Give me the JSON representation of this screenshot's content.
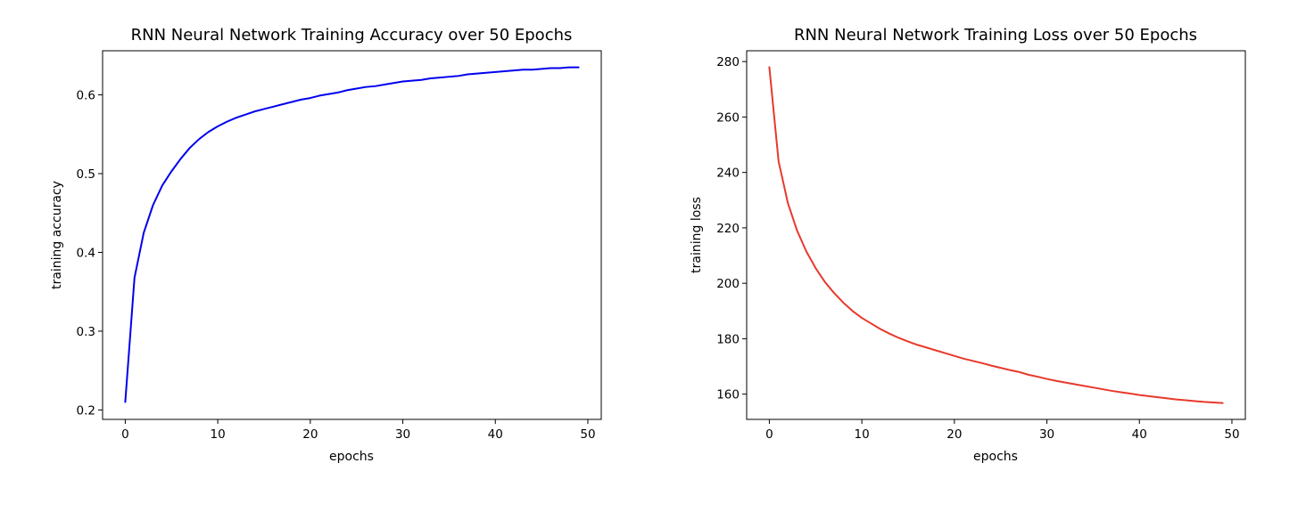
{
  "chart_data": [
    {
      "type": "line",
      "title": "RNN Neural Network Training Accuracy over 50 Epochs",
      "xlabel": "epochs",
      "ylabel": "training accuracy",
      "xlim": [
        -2.45,
        51.45
      ],
      "ylim": [
        0.188,
        0.656
      ],
      "xticks": [
        0,
        10,
        20,
        30,
        40,
        50
      ],
      "xtick_labels": [
        "0",
        "10",
        "20",
        "30",
        "40",
        "50"
      ],
      "yticks": [
        0.2,
        0.3,
        0.4,
        0.5,
        0.6
      ],
      "ytick_labels": [
        "0.2",
        "0.3",
        "0.4",
        "0.5",
        "0.6"
      ],
      "grid": false,
      "legend": "none",
      "series": [
        {
          "color": "#0000ee",
          "x": [
            0,
            1,
            2,
            3,
            4,
            5,
            6,
            7,
            8,
            9,
            10,
            11,
            12,
            13,
            14,
            15,
            16,
            17,
            18,
            19,
            20,
            21,
            22,
            23,
            24,
            25,
            26,
            27,
            28,
            29,
            30,
            31,
            32,
            33,
            34,
            35,
            36,
            37,
            38,
            39,
            40,
            41,
            42,
            43,
            44,
            45,
            46,
            47,
            48,
            49
          ],
          "y": [
            0.21,
            0.368,
            0.425,
            0.46,
            0.485,
            0.503,
            0.519,
            0.533,
            0.544,
            0.553,
            0.56,
            0.566,
            0.571,
            0.575,
            0.579,
            0.582,
            0.585,
            0.588,
            0.591,
            0.594,
            0.596,
            0.599,
            0.601,
            0.603,
            0.606,
            0.608,
            0.61,
            0.611,
            0.613,
            0.615,
            0.617,
            0.618,
            0.619,
            0.621,
            0.622,
            0.623,
            0.624,
            0.626,
            0.627,
            0.628,
            0.629,
            0.63,
            0.631,
            0.632,
            0.632,
            0.633,
            0.634,
            0.634,
            0.635,
            0.635
          ]
        }
      ]
    },
    {
      "type": "line",
      "title": "RNN Neural Network Training Loss over 50 Epochs",
      "xlabel": "epochs",
      "ylabel": "training loss",
      "xlim": [
        -2.45,
        51.45
      ],
      "ylim": [
        150.9,
        283.9
      ],
      "xticks": [
        0,
        10,
        20,
        30,
        40,
        50
      ],
      "xtick_labels": [
        "0",
        "10",
        "20",
        "30",
        "40",
        "50"
      ],
      "yticks": [
        160,
        180,
        200,
        220,
        240,
        260,
        280
      ],
      "ytick_labels": [
        "160",
        "180",
        "200",
        "220",
        "240",
        "260",
        "280"
      ],
      "grid": false,
      "legend": "none",
      "series": [
        {
          "color": "#e8392b",
          "x": [
            0,
            1,
            2,
            3,
            4,
            5,
            6,
            7,
            8,
            9,
            10,
            11,
            12,
            13,
            14,
            15,
            16,
            17,
            18,
            19,
            20,
            21,
            22,
            23,
            24,
            25,
            26,
            27,
            28,
            29,
            30,
            31,
            32,
            33,
            34,
            35,
            36,
            37,
            38,
            39,
            40,
            41,
            42,
            43,
            44,
            45,
            46,
            47,
            48,
            49
          ],
          "y": [
            278,
            244,
            229,
            219,
            211.5,
            205.5,
            200.5,
            196.5,
            193,
            190,
            187.5,
            185.5,
            183.5,
            181.8,
            180.3,
            179,
            177.8,
            176.8,
            175.8,
            174.8,
            173.8,
            172.8,
            172,
            171.2,
            170.3,
            169.5,
            168.7,
            168,
            167,
            166.3,
            165.5,
            164.8,
            164.2,
            163.6,
            163,
            162.4,
            161.8,
            161.2,
            160.7,
            160.2,
            159.7,
            159.3,
            158.9,
            158.5,
            158.1,
            157.8,
            157.5,
            157.2,
            157,
            156.8
          ]
        }
      ]
    }
  ]
}
